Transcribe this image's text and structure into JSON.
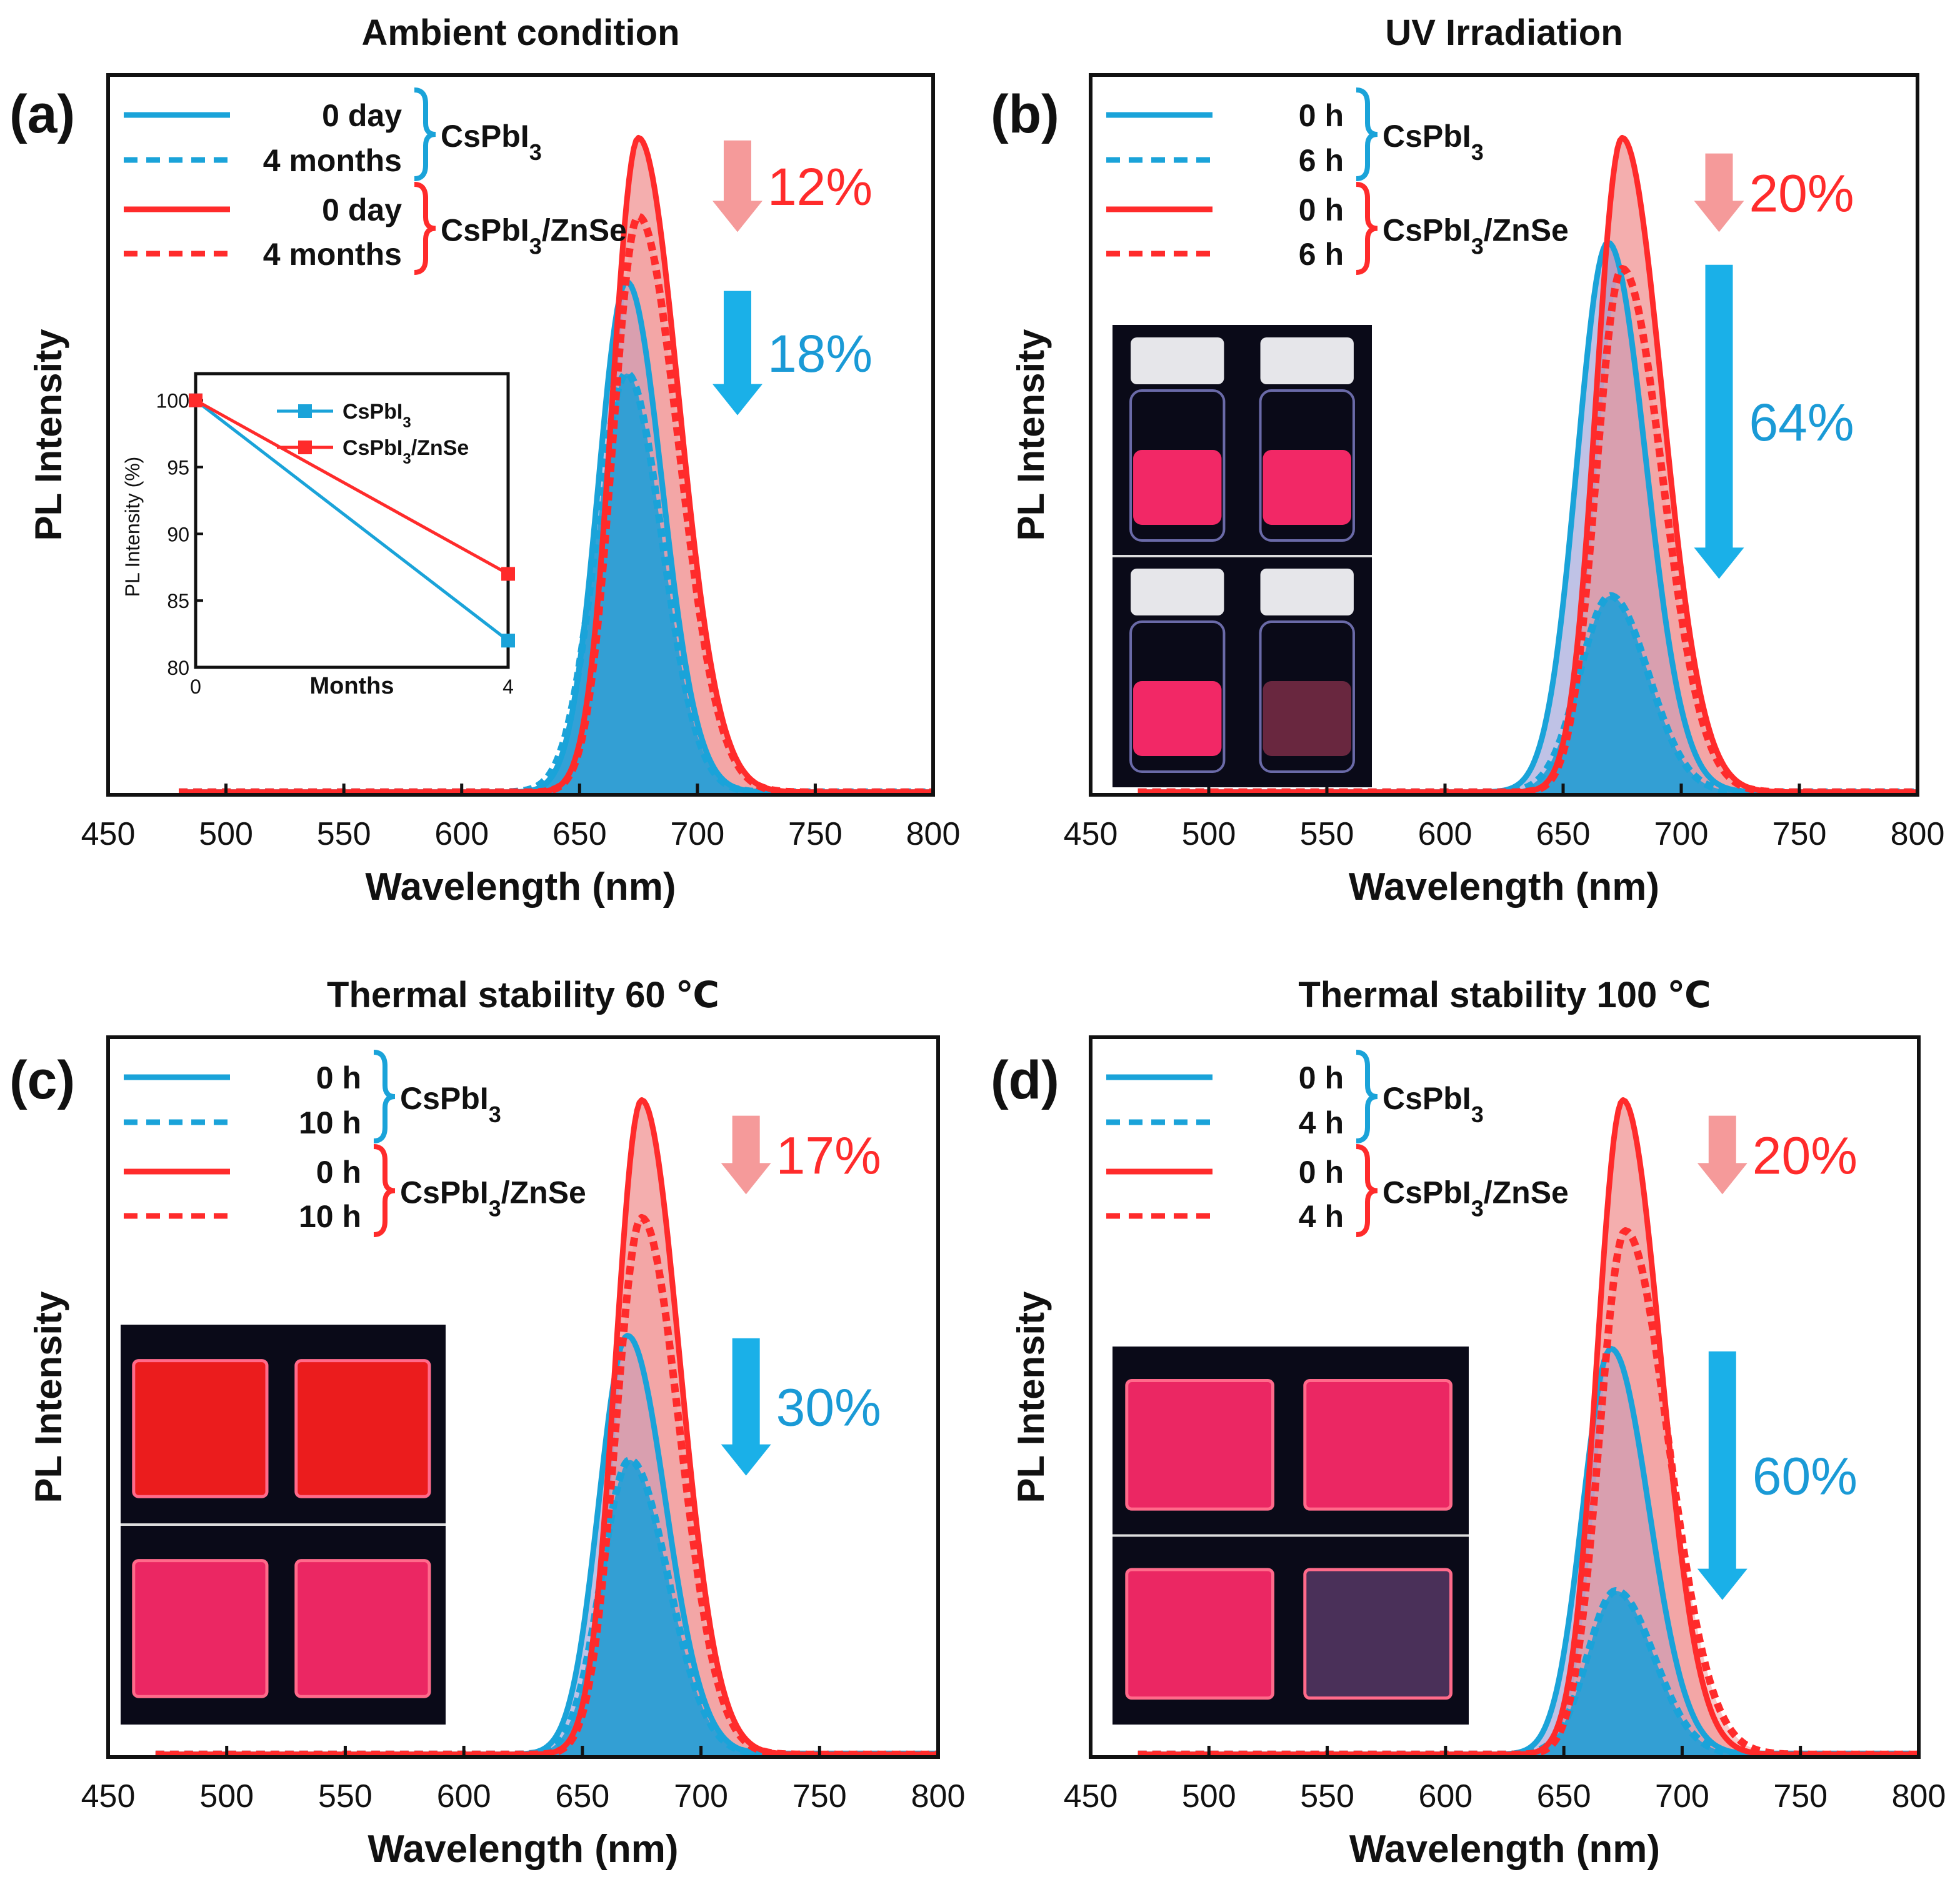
{
  "colors": {
    "blue": "#1aa3d9",
    "blue_fill": "#2a9fd6",
    "red": "#ff2b2b",
    "red_fill": "#f2a0a0",
    "arrow_red": "#f59a9a",
    "arrow_blue": "#1ab0e8",
    "photo_red": "#ff1e1e",
    "photo_pink": "#ff2a6a",
    "photo_bg": "#0a0a18"
  },
  "chart_data": [
    {
      "id": "a",
      "type": "line",
      "panel_label": "(a)",
      "title": "Ambient condition",
      "xlabel": "Wavelength (nm)",
      "ylabel": "PL Intensity",
      "xlim": [
        450,
        800
      ],
      "xticks": [
        "450",
        "500",
        "550",
        "600",
        "650",
        "700",
        "750",
        "800"
      ],
      "ylim": [
        0,
        1.1
      ],
      "x_start": 480,
      "series": [
        {
          "name": "CsPbI3 0 day",
          "material": "CsPbI3",
          "state": "initial",
          "peak": 670,
          "amplitude": 0.78,
          "sigma_left": 12,
          "sigma_right": 15
        },
        {
          "name": "CsPbI3 4 months",
          "material": "CsPbI3",
          "state": "aged",
          "peak": 670,
          "amplitude": 0.64,
          "sigma_left": 13,
          "sigma_right": 15
        },
        {
          "name": "CsPbI3/ZnSe 0 day",
          "material": "CsPbI3/ZnSe",
          "state": "initial",
          "peak": 675,
          "amplitude": 1.0,
          "sigma_left": 11,
          "sigma_right": 17
        },
        {
          "name": "CsPbI3/ZnSe 4 months",
          "material": "CsPbI3/ZnSe",
          "state": "aged",
          "peak": 675,
          "amplitude": 0.88,
          "sigma_left": 11,
          "sigma_right": 17
        }
      ],
      "legend": {
        "group1": {
          "solid": "0 day",
          "dashed": "4 months",
          "material": "CsPbI",
          "sub": "3",
          "suffix": ""
        },
        "group2": {
          "solid": "0 day",
          "dashed": "4 months",
          "material": "CsPbI",
          "sub": "3",
          "suffix": "/ZnSe"
        }
      },
      "annotations": {
        "red_drop": "12%",
        "blue_drop": "18%"
      },
      "arrows": {
        "red": {
          "x": 717,
          "y_from": 1.0,
          "y_to": 0.86
        },
        "blue": {
          "x": 717,
          "y_from": 0.77,
          "y_to": 0.58
        }
      },
      "inset": {
        "type": "line",
        "xlabel": "Months",
        "ylabel": "PL Intensity (%)",
        "x": [
          0,
          4
        ],
        "xticks": [
          "0",
          "4"
        ],
        "ylim": [
          80,
          102
        ],
        "yticks": [
          "80",
          "85",
          "90",
          "95",
          "100"
        ],
        "series": [
          {
            "name": "CsPbI3",
            "label": "CsPbI",
            "sub": "3",
            "suffix": "",
            "values": [
              100,
              82
            ]
          },
          {
            "name": "CsPbI3/ZnSe",
            "label": "CsPbI",
            "sub": "3",
            "suffix": "/ZnSe",
            "values": [
              100,
              87
            ]
          }
        ]
      }
    },
    {
      "id": "b",
      "type": "line",
      "panel_label": "(b)",
      "title": "UV Irradiation",
      "xlabel": "Wavelength (nm)",
      "ylabel": "PL Intensity",
      "xlim": [
        450,
        800
      ],
      "xticks": [
        "450",
        "500",
        "550",
        "600",
        "650",
        "700",
        "750",
        "800"
      ],
      "ylim": [
        0,
        1.1
      ],
      "x_start": 470,
      "series": [
        {
          "name": "CsPbI3 0 h",
          "material": "CsPbI3",
          "state": "initial",
          "peak": 669,
          "amplitude": 0.84,
          "sigma_left": 13,
          "sigma_right": 16
        },
        {
          "name": "CsPbI3 6 h",
          "material": "CsPbI3",
          "state": "aged",
          "peak": 670,
          "amplitude": 0.3,
          "sigma_left": 13,
          "sigma_right": 16
        },
        {
          "name": "CsPbI3/ZnSe 0 h",
          "material": "CsPbI3/ZnSe",
          "state": "initial",
          "peak": 675,
          "amplitude": 1.0,
          "sigma_left": 11,
          "sigma_right": 17
        },
        {
          "name": "CsPbI3/ZnSe 6 h",
          "material": "CsPbI3/ZnSe",
          "state": "aged",
          "peak": 675,
          "amplitude": 0.8,
          "sigma_left": 11,
          "sigma_right": 17
        }
      ],
      "legend": {
        "group1": {
          "solid": "0 h",
          "dashed": "6 h",
          "material": "CsPbI",
          "sub": "3",
          "suffix": ""
        },
        "group2": {
          "solid": "0 h",
          "dashed": "6 h",
          "material": "CsPbI",
          "sub": "3",
          "suffix": "/ZnSe"
        }
      },
      "annotations": {
        "red_drop": "20%",
        "blue_drop": "64%"
      },
      "arrows": {
        "red": {
          "x": 716,
          "y_from": 0.98,
          "y_to": 0.86
        },
        "blue": {
          "x": 716,
          "y_from": 0.81,
          "y_to": 0.33
        }
      },
      "photos": {
        "top": [
          "pink_vial",
          "pink_vial"
        ],
        "bottom": [
          "pink_vial",
          "dim_vial"
        ]
      }
    },
    {
      "id": "c",
      "type": "line",
      "panel_label": "(c)",
      "title": "Thermal stability 60 ℃",
      "xlabel": "Wavelength (nm)",
      "ylabel": "PL Intensity",
      "xlim": [
        450,
        800
      ],
      "xticks": [
        "450",
        "500",
        "550",
        "600",
        "650",
        "700",
        "750",
        "800"
      ],
      "ylim": [
        0,
        1.1
      ],
      "x_start": 470,
      "series": [
        {
          "name": "CsPbI3 0 h",
          "material": "CsPbI3",
          "state": "initial",
          "peak": 669,
          "amplitude": 0.64,
          "sigma_left": 12,
          "sigma_right": 16
        },
        {
          "name": "CsPbI3 10 h",
          "material": "CsPbI3",
          "state": "aged",
          "peak": 670,
          "amplitude": 0.45,
          "sigma_left": 12,
          "sigma_right": 16
        },
        {
          "name": "CsPbI3/ZnSe 0 h",
          "material": "CsPbI3/ZnSe",
          "state": "initial",
          "peak": 675,
          "amplitude": 1.0,
          "sigma_left": 11,
          "sigma_right": 16
        },
        {
          "name": "CsPbI3/ZnSe 10 h",
          "material": "CsPbI3/ZnSe",
          "state": "aged",
          "peak": 675,
          "amplitude": 0.82,
          "sigma_left": 11,
          "sigma_right": 16
        }
      ],
      "legend": {
        "group1": {
          "solid": "0 h",
          "dashed": "10 h",
          "material": "CsPbI",
          "sub": "3",
          "suffix": ""
        },
        "group2": {
          "solid": "0 h",
          "dashed": "10 h",
          "material": "CsPbI",
          "sub": "3",
          "suffix": "/ZnSe"
        }
      },
      "annotations": {
        "red_drop": "17%",
        "blue_drop": "30%"
      },
      "arrows": {
        "red": {
          "x": 719,
          "y_from": 0.98,
          "y_to": 0.86
        },
        "blue": {
          "x": 719,
          "y_from": 0.64,
          "y_to": 0.43
        }
      },
      "photos": {
        "top": [
          "red_film",
          "red_film"
        ],
        "bottom": [
          "pink_film",
          "pink_film"
        ]
      }
    },
    {
      "id": "d",
      "type": "line",
      "panel_label": "(d)",
      "title": "Thermal stability 100 ℃",
      "xlabel": "Wavelength (nm)",
      "ylabel": "PL Intensity",
      "xlim": [
        450,
        800
      ],
      "xticks": [
        "450",
        "500",
        "550",
        "600",
        "650",
        "700",
        "750",
        "800"
      ],
      "ylim": [
        0,
        1.1
      ],
      "x_start": 470,
      "series": [
        {
          "name": "CsPbI3 0 h",
          "material": "CsPbI3",
          "state": "initial",
          "peak": 670,
          "amplitude": 0.62,
          "sigma_left": 12,
          "sigma_right": 16
        },
        {
          "name": "CsPbI3 4 h",
          "material": "CsPbI3",
          "state": "aged",
          "peak": 672,
          "amplitude": 0.25,
          "sigma_left": 12,
          "sigma_right": 16
        },
        {
          "name": "CsPbI3/ZnSe 0 h",
          "material": "CsPbI3/ZnSe",
          "state": "initial",
          "peak": 675,
          "amplitude": 1.0,
          "sigma_left": 11,
          "sigma_right": 16
        },
        {
          "name": "CsPbI3/ZnSe 4 h",
          "material": "CsPbI3/ZnSe",
          "state": "aged",
          "peak": 676,
          "amplitude": 0.8,
          "sigma_left": 11,
          "sigma_right": 18
        }
      ],
      "legend": {
        "group1": {
          "solid": "0 h",
          "dashed": "4 h",
          "material": "CsPbI",
          "sub": "3",
          "suffix": ""
        },
        "group2": {
          "solid": "0 h",
          "dashed": "4 h",
          "material": "CsPbI",
          "sub": "3",
          "suffix": "/ZnSe"
        }
      },
      "annotations": {
        "red_drop": "20%",
        "blue_drop": "60%"
      },
      "arrows": {
        "red": {
          "x": 717,
          "y_from": 0.98,
          "y_to": 0.86
        },
        "blue": {
          "x": 717,
          "y_from": 0.62,
          "y_to": 0.24
        }
      },
      "photos": {
        "top": [
          "pink_film",
          "pink_film"
        ],
        "bottom": [
          "pink_film",
          "degraded_film"
        ]
      }
    }
  ]
}
